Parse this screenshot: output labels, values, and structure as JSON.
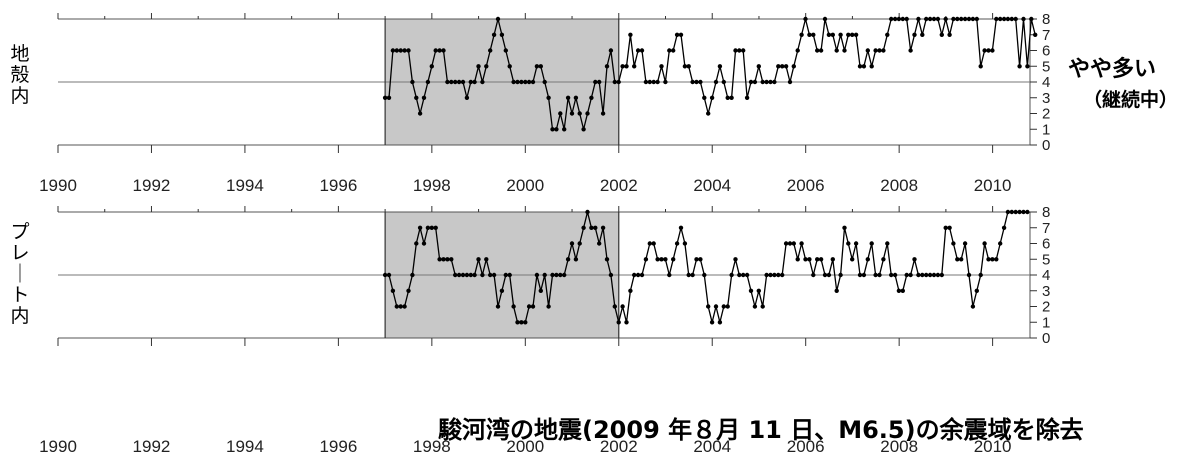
{
  "chart_data": [
    {
      "type": "line",
      "panel_label": "地殻内",
      "annotation": "やや多い",
      "annotation_sub": "（継続中）",
      "xlim": [
        1990,
        2010.8
      ],
      "ylim": [
        0,
        8
      ],
      "x_ticks": [
        1990,
        1992,
        1994,
        1996,
        1998,
        2000,
        2002,
        2004,
        2006,
        2008,
        2010
      ],
      "y_ticks": [
        0,
        1,
        2,
        3,
        4,
        5,
        6,
        7,
        8
      ],
      "reference_line_y": 4,
      "shaded_range": [
        1997.0,
        2002.0
      ],
      "grid": false,
      "start": 1997.0,
      "step": 0.0833,
      "values": [
        3,
        3,
        6,
        6,
        6,
        6,
        6,
        4,
        3,
        2,
        3,
        4,
        5,
        6,
        6,
        6,
        4,
        4,
        4,
        4,
        4,
        3,
        4,
        4,
        5,
        4,
        5,
        6,
        7,
        8,
        7,
        6,
        5,
        4,
        4,
        4,
        4,
        4,
        4,
        5,
        5,
        4,
        3,
        1,
        1,
        2,
        1,
        3,
        2,
        3,
        2,
        1,
        2,
        3,
        4,
        4,
        2,
        5,
        6,
        4,
        4,
        5,
        5,
        7,
        5,
        6,
        6,
        4,
        4,
        4,
        4,
        5,
        4,
        6,
        6,
        7,
        7,
        5,
        5,
        4,
        4,
        4,
        3,
        2,
        3,
        4,
        5,
        4,
        3,
        3,
        6,
        6,
        6,
        3,
        4,
        4,
        5,
        4,
        4,
        4,
        4,
        5,
        5,
        5,
        4,
        5,
        6,
        7,
        8,
        7,
        7,
        6,
        6,
        8,
        7,
        7,
        6,
        7,
        6,
        7,
        7,
        7,
        5,
        5,
        6,
        5,
        6,
        6,
        6,
        7,
        8,
        8,
        8,
        8,
        8,
        6,
        7,
        8,
        7,
        8,
        8,
        8,
        8,
        7,
        8,
        7,
        8,
        8,
        8,
        8,
        8,
        8,
        8,
        5,
        6,
        6,
        6,
        8,
        8,
        8,
        8,
        8,
        8,
        5,
        8,
        5,
        8,
        7
      ]
    },
    {
      "type": "line",
      "panel_label": "プレート内",
      "annotation": "",
      "xlim": [
        1990,
        2010.8
      ],
      "ylim": [
        0,
        8
      ],
      "x_ticks": [
        1990,
        1992,
        1994,
        1996,
        1998,
        2000,
        2002,
        2004,
        2006,
        2008,
        2010
      ],
      "y_ticks": [
        0,
        1,
        2,
        3,
        4,
        5,
        6,
        7,
        8
      ],
      "reference_line_y": 4,
      "shaded_range": [
        1997.0,
        2002.0
      ],
      "grid": false,
      "start": 1997.0,
      "step": 0.0833,
      "values": [
        4,
        4,
        3,
        2,
        2,
        2,
        3,
        4,
        6,
        7,
        6,
        7,
        7,
        7,
        5,
        5,
        5,
        5,
        4,
        4,
        4,
        4,
        4,
        4,
        5,
        4,
        5,
        4,
        4,
        2,
        3,
        4,
        4,
        2,
        1,
        1,
        1,
        2,
        2,
        4,
        3,
        4,
        2,
        4,
        4,
        4,
        4,
        5,
        6,
        5,
        6,
        7,
        8,
        7,
        7,
        6,
        7,
        5,
        4,
        2,
        1,
        2,
        1,
        3,
        4,
        4,
        4,
        5,
        6,
        6,
        5,
        5,
        5,
        4,
        5,
        6,
        7,
        6,
        4,
        4,
        5,
        5,
        4,
        2,
        1,
        2,
        1,
        2,
        2,
        4,
        5,
        4,
        4,
        4,
        3,
        2,
        3,
        2,
        4,
        4,
        4,
        4,
        4,
        6,
        6,
        6,
        5,
        6,
        5,
        5,
        4,
        5,
        5,
        4,
        4,
        5,
        3,
        4,
        7,
        6,
        5,
        6,
        4,
        4,
        5,
        6,
        4,
        4,
        5,
        6,
        4,
        4,
        3,
        3,
        4,
        4,
        5,
        4,
        4,
        4,
        4,
        4,
        4,
        4,
        7,
        7,
        6,
        5,
        5,
        6,
        4,
        2,
        3,
        4,
        6,
        5,
        5,
        5,
        6,
        7,
        8,
        8,
        8,
        8,
        8,
        8
      ]
    }
  ],
  "bottom_axis_ticks": [
    "1990",
    "1992",
    "1994",
    "1996",
    "1998",
    "2000",
    "2002",
    "2004",
    "2006",
    "2008",
    "2010"
  ],
  "caption": "駿河湾の地震(2009 年８月 11 日、M6.5)の余震域を除去",
  "colors": {
    "shade": "#c8c8c8",
    "line": "#000000",
    "frame": "#555555",
    "background": "#ffffff"
  }
}
